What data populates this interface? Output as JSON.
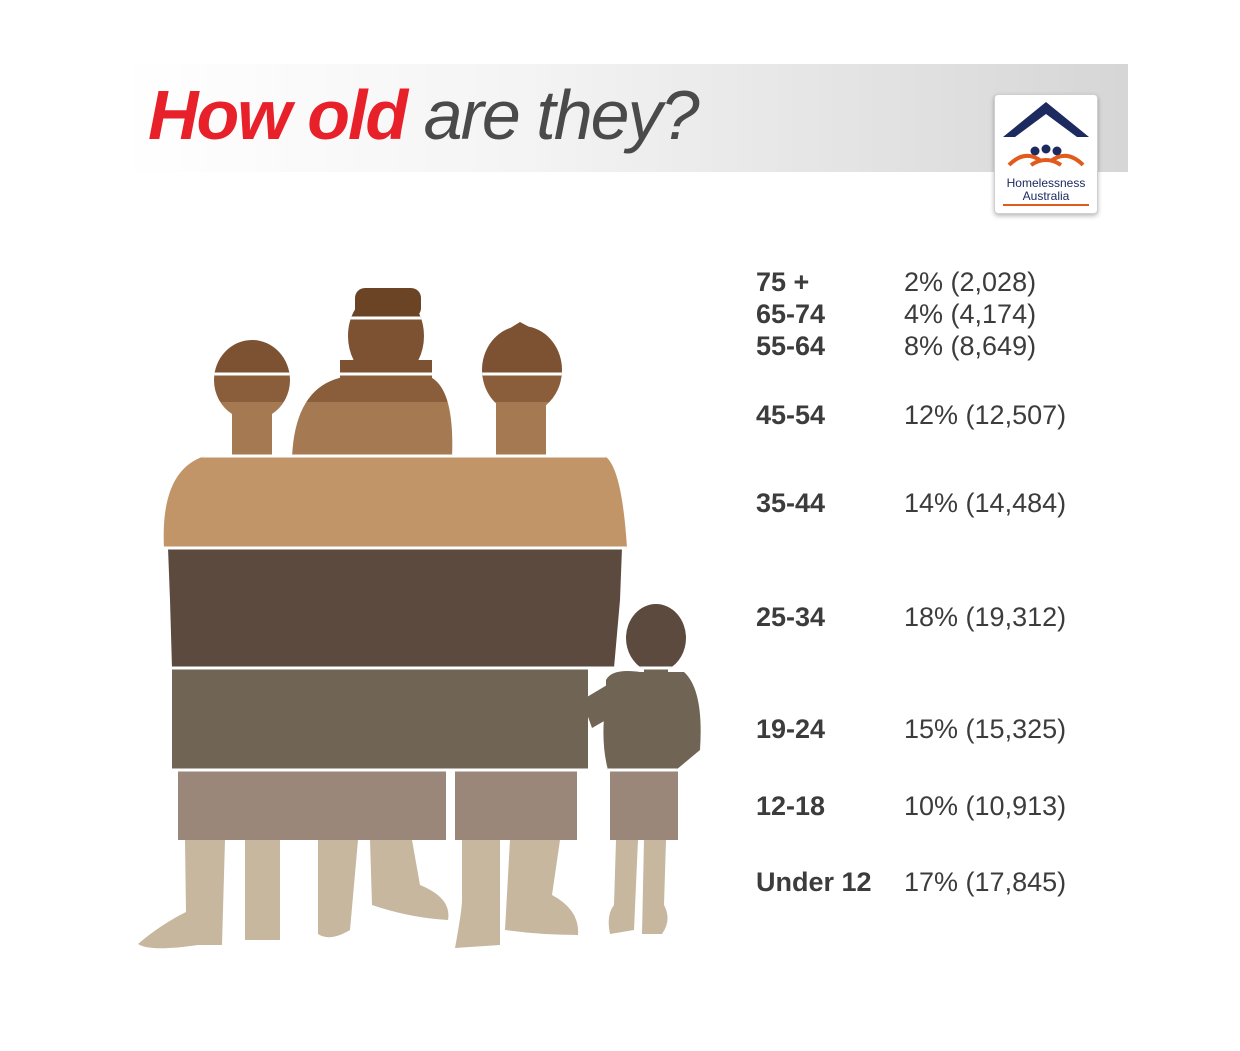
{
  "title": {
    "bold": "How old",
    "rest": "are they?"
  },
  "logo": {
    "line1": "Homelessness",
    "line2": "Australia"
  },
  "colors": {
    "title_red": "#e8202a",
    "title_grey": "#4a4a4a",
    "logo_navy": "#1d2a60",
    "logo_orange": "#e25a1c"
  },
  "chart_data": {
    "type": "table",
    "categories": [
      "75 +",
      "65-74",
      "55-64",
      "45-54",
      "35-44",
      "25-34",
      "19-24",
      "12-18",
      "Under 12"
    ],
    "series": [
      {
        "values_percent": [
          2,
          4,
          8,
          12,
          14,
          18,
          15,
          10,
          17
        ],
        "counts": [
          2028,
          4174,
          8649,
          12507,
          14484,
          19312,
          15325,
          10913,
          17845
        ]
      }
    ],
    "labels": [
      "2% (2,028)",
      "4% (4,174)",
      "8% (8,649)",
      "12% (12,507)",
      "14% (14,484)",
      "18% (19,312)",
      "15% (15,325)",
      "10% (10,913)",
      "17% (17,845)"
    ],
    "band_colors": [
      "#6b4425",
      "#7d5233",
      "#8a5e3a",
      "#a57a52",
      "#c19568",
      "#5c4a3f",
      "#706455",
      "#9a877a",
      "#c6b79e"
    ]
  }
}
